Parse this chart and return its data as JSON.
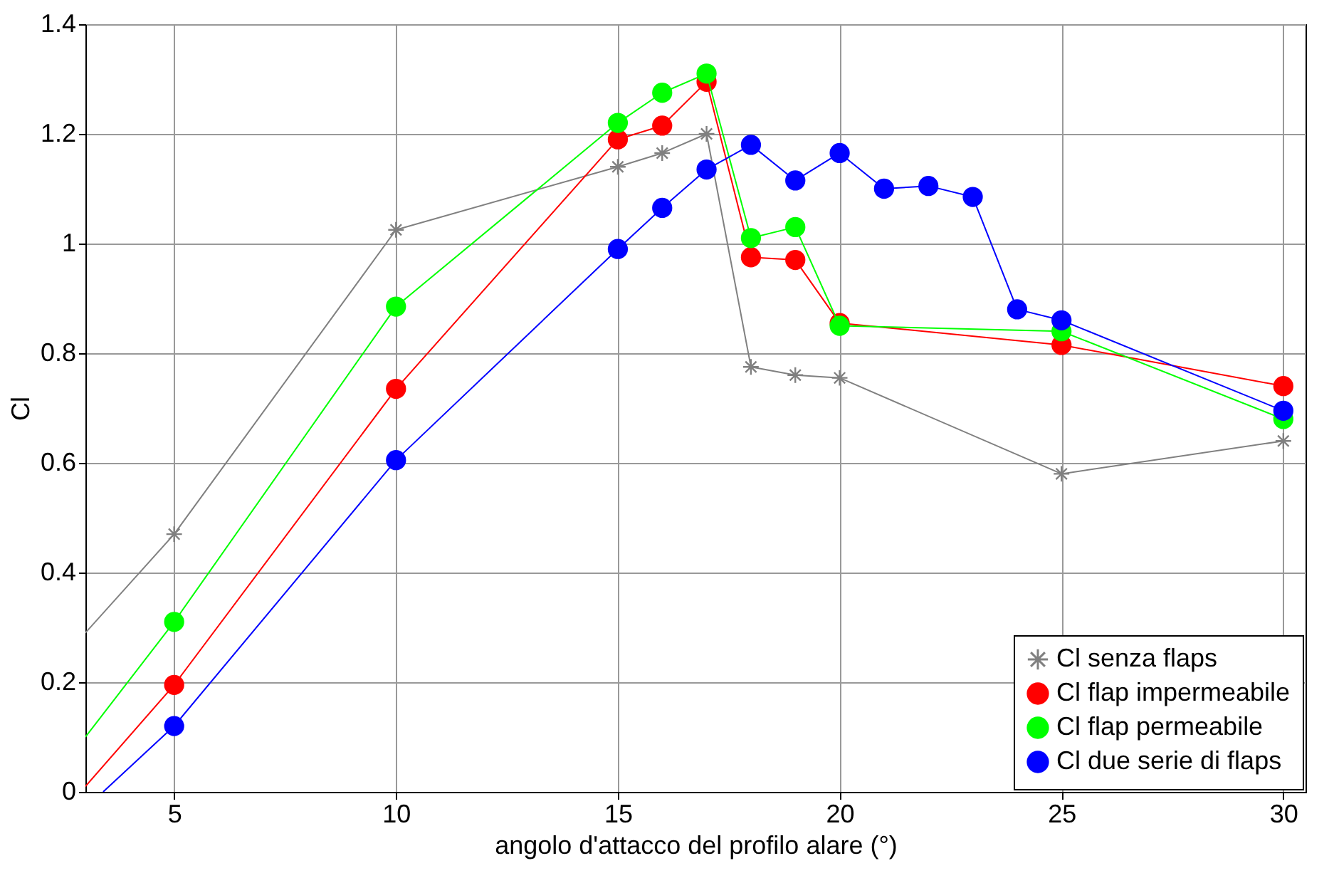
{
  "chart_data": {
    "type": "line",
    "xlabel": "angolo d'attacco del profilo alare (°)",
    "ylabel": "Cl",
    "xlim": [
      3,
      30.5
    ],
    "ylim": [
      0,
      1.4
    ],
    "xticks": [
      5,
      10,
      15,
      20,
      25,
      30
    ],
    "yticks": [
      0,
      0.2,
      0.4,
      0.6,
      0.8,
      1,
      1.2,
      1.4
    ],
    "grid": true,
    "legend": "bottom right",
    "line_style": "solid",
    "series": [
      {
        "name": "Cl senza flaps",
        "color": "#808080",
        "marker": "cross",
        "x": [
          5,
          10,
          15,
          16,
          17,
          18,
          19,
          20,
          25,
          30
        ],
        "values": [
          0.47,
          1.025,
          1.14,
          1.165,
          1.2,
          0.775,
          0.76,
          0.755,
          0.58,
          0.64
        ]
      },
      {
        "name": "Cl flap impermeabile",
        "color": "#ff0000",
        "marker": "circle",
        "x": [
          5,
          10,
          15,
          16,
          17,
          18,
          19,
          20,
          25,
          30
        ],
        "values": [
          0.195,
          0.735,
          1.19,
          1.215,
          1.295,
          0.975,
          0.97,
          0.855,
          0.815,
          0.74
        ]
      },
      {
        "name": "Cl flap permeabile",
        "color": "#00ff00",
        "marker": "circle",
        "x": [
          5,
          10,
          15,
          16,
          17,
          18,
          19,
          20,
          25,
          30
        ],
        "values": [
          0.31,
          0.885,
          1.22,
          1.275,
          1.31,
          1.01,
          1.03,
          0.85,
          0.84,
          0.68
        ]
      },
      {
        "name": "Cl due serie di flaps",
        "color": "#0000ff",
        "marker": "circle",
        "x": [
          5,
          10,
          15,
          16,
          17,
          18,
          19,
          20,
          21,
          22,
          23,
          24,
          25,
          30
        ],
        "values": [
          0.12,
          0.605,
          0.99,
          1.065,
          1.135,
          1.18,
          1.115,
          1.165,
          1.1,
          1.105,
          1.085,
          0.88,
          0.86,
          0.695
        ]
      },
      {
        "color": "#808080",
        "x": [
          3,
          5
        ],
        "values": [
          0.29,
          0.47
        ]
      },
      {
        "color": "#ff0000",
        "x": [
          3,
          5
        ],
        "values": [
          0.01,
          0.195
        ]
      },
      {
        "color": "#00ff00",
        "x": [
          3,
          5
        ],
        "values": [
          0.1,
          0.31
        ]
      },
      {
        "color": "#0000ff",
        "x": [
          3.4,
          5
        ],
        "values": [
          0,
          0.12
        ]
      }
    ]
  }
}
